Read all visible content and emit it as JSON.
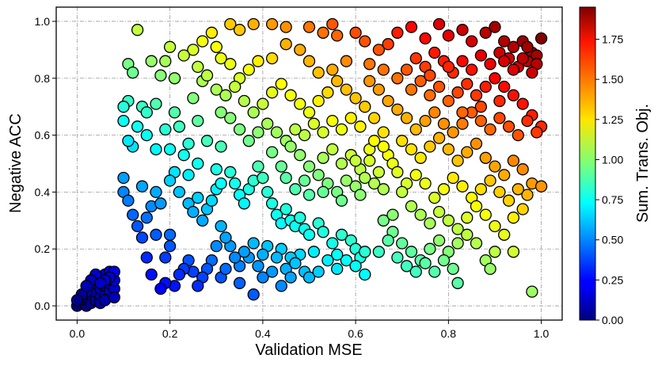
{
  "chart_data": {
    "type": "scatter",
    "xlabel": "Validation MSE",
    "ylabel": "Negative ACC",
    "xlim": [
      -0.045,
      1.045
    ],
    "ylim": [
      -0.05,
      1.05
    ],
    "x_ticks": [
      "0.0",
      "0.2",
      "0.4",
      "0.6",
      "0.8",
      "1.0"
    ],
    "y_ticks": [
      "0.0",
      "0.2",
      "0.4",
      "0.6",
      "0.8",
      "1.0"
    ],
    "grid": true,
    "colorbar": {
      "label": "Sum. Trans. Obj.",
      "range": [
        0,
        1.95
      ],
      "ticks": [
        "0.00",
        "0.25",
        "0.50",
        "0.75",
        "1.00",
        "1.25",
        "1.50",
        "1.75"
      ],
      "colormap": "jet"
    },
    "color_value": "x + y",
    "points": [
      [
        0.0,
        0.0
      ],
      [
        0.01,
        0.01
      ],
      [
        0.01,
        0.02
      ],
      [
        0.02,
        0.0
      ],
      [
        0.02,
        0.02
      ],
      [
        0.02,
        0.03
      ],
      [
        0.03,
        0.01
      ],
      [
        0.03,
        0.04
      ],
      [
        0.03,
        0.06
      ],
      [
        0.04,
        0.02
      ],
      [
        0.04,
        0.05
      ],
      [
        0.04,
        0.08
      ],
      [
        0.05,
        0.03
      ],
      [
        0.05,
        0.06
      ],
      [
        0.05,
        0.1
      ],
      [
        0.06,
        0.04
      ],
      [
        0.06,
        0.07
      ],
      [
        0.06,
        0.11
      ],
      [
        0.07,
        0.05
      ],
      [
        0.07,
        0.08
      ],
      [
        0.07,
        0.12
      ],
      [
        0.08,
        0.06
      ],
      [
        0.08,
        0.09
      ],
      [
        0.08,
        0.12
      ],
      [
        0.02,
        0.05
      ],
      [
        0.01,
        0.04
      ],
      [
        0.05,
        0.01
      ],
      [
        0.06,
        0.02
      ],
      [
        0.07,
        0.1
      ],
      [
        0.04,
        0.11
      ],
      [
        0.03,
        0.09
      ],
      [
        0.08,
        0.03
      ],
      [
        0.0,
        0.02
      ],
      [
        0.06,
        0.09
      ],
      [
        0.02,
        0.07
      ],
      [
        0.05,
        0.08
      ],
      [
        0.13,
        0.97
      ],
      [
        0.11,
        0.85
      ],
      [
        0.12,
        0.82
      ],
      [
        0.16,
        0.86
      ],
      [
        0.19,
        0.86
      ],
      [
        0.2,
        0.91
      ],
      [
        0.18,
        0.81
      ],
      [
        0.21,
        0.8
      ],
      [
        0.14,
        0.7
      ],
      [
        0.17,
        0.71
      ],
      [
        0.15,
        0.68
      ],
      [
        0.11,
        0.72
      ],
      [
        0.1,
        0.7
      ],
      [
        0.1,
        0.65
      ],
      [
        0.13,
        0.63
      ],
      [
        0.15,
        0.6
      ],
      [
        0.12,
        0.56
      ],
      [
        0.11,
        0.58
      ],
      [
        0.17,
        0.55
      ],
      [
        0.19,
        0.62
      ],
      [
        0.21,
        0.68
      ],
      [
        0.22,
        0.63
      ],
      [
        0.2,
        0.55
      ],
      [
        0.23,
        0.53
      ],
      [
        0.24,
        0.57
      ],
      [
        0.25,
        0.73
      ],
      [
        0.27,
        0.79
      ],
      [
        0.26,
        0.65
      ],
      [
        0.28,
        0.58
      ],
      [
        0.31,
        0.56
      ],
      [
        0.3,
        0.48
      ],
      [
        0.26,
        0.5
      ],
      [
        0.24,
        0.46
      ],
      [
        0.21,
        0.47
      ],
      [
        0.2,
        0.44
      ],
      [
        0.17,
        0.4
      ],
      [
        0.14,
        0.42
      ],
      [
        0.1,
        0.45
      ],
      [
        0.1,
        0.4
      ],
      [
        0.11,
        0.37
      ],
      [
        0.12,
        0.32
      ],
      [
        0.13,
        0.28
      ],
      [
        0.14,
        0.24
      ],
      [
        0.15,
        0.31
      ],
      [
        0.16,
        0.35
      ],
      [
        0.18,
        0.36
      ],
      [
        0.17,
        0.25
      ],
      [
        0.2,
        0.25
      ],
      [
        0.22,
        0.4
      ],
      [
        0.24,
        0.36
      ],
      [
        0.25,
        0.33
      ],
      [
        0.26,
        0.38
      ],
      [
        0.27,
        0.3
      ],
      [
        0.28,
        0.34
      ],
      [
        0.29,
        0.37
      ],
      [
        0.3,
        0.41
      ],
      [
        0.31,
        0.43
      ],
      [
        0.33,
        0.47
      ],
      [
        0.34,
        0.43
      ],
      [
        0.35,
        0.39
      ],
      [
        0.36,
        0.36
      ],
      [
        0.37,
        0.41
      ],
      [
        0.38,
        0.44
      ],
      [
        0.39,
        0.49
      ],
      [
        0.4,
        0.45
      ],
      [
        0.41,
        0.4
      ],
      [
        0.42,
        0.36
      ],
      [
        0.43,
        0.32
      ],
      [
        0.44,
        0.29
      ],
      [
        0.45,
        0.34
      ],
      [
        0.46,
        0.3
      ],
      [
        0.47,
        0.28
      ],
      [
        0.48,
        0.31
      ],
      [
        0.49,
        0.27
      ],
      [
        0.5,
        0.25
      ],
      [
        0.52,
        0.29
      ],
      [
        0.53,
        0.26
      ],
      [
        0.55,
        0.22
      ],
      [
        0.57,
        0.25
      ],
      [
        0.59,
        0.23
      ],
      [
        0.6,
        0.2
      ],
      [
        0.61,
        0.17
      ],
      [
        0.62,
        0.19
      ],
      [
        0.58,
        0.16
      ],
      [
        0.56,
        0.18
      ],
      [
        0.54,
        0.16
      ],
      [
        0.51,
        0.19
      ],
      [
        0.48,
        0.18
      ],
      [
        0.46,
        0.17
      ],
      [
        0.44,
        0.2
      ],
      [
        0.43,
        0.17
      ],
      [
        0.41,
        0.21
      ],
      [
        0.4,
        0.18
      ],
      [
        0.38,
        0.22
      ],
      [
        0.37,
        0.17
      ],
      [
        0.36,
        0.19
      ],
      [
        0.35,
        0.14
      ],
      [
        0.34,
        0.17
      ],
      [
        0.33,
        0.21
      ],
      [
        0.32,
        0.24
      ],
      [
        0.31,
        0.28
      ],
      [
        0.3,
        0.21
      ],
      [
        0.29,
        0.16
      ],
      [
        0.28,
        0.13
      ],
      [
        0.27,
        0.1
      ],
      [
        0.26,
        0.07
      ],
      [
        0.25,
        0.12
      ],
      [
        0.24,
        0.16
      ],
      [
        0.23,
        0.13
      ],
      [
        0.22,
        0.11
      ],
      [
        0.21,
        0.07
      ],
      [
        0.19,
        0.08
      ],
      [
        0.18,
        0.06
      ],
      [
        0.16,
        0.11
      ],
      [
        0.15,
        0.17
      ],
      [
        0.19,
        0.17
      ],
      [
        0.2,
        0.21
      ],
      [
        0.39,
        0.14
      ],
      [
        0.42,
        0.12
      ],
      [
        0.45,
        0.13
      ],
      [
        0.47,
        0.15
      ],
      [
        0.49,
        0.12
      ],
      [
        0.5,
        0.1
      ],
      [
        0.4,
        0.1
      ],
      [
        0.38,
        0.04
      ],
      [
        0.35,
        0.08
      ],
      [
        0.31,
        0.1
      ],
      [
        0.32,
        0.13
      ],
      [
        0.44,
        0.07
      ],
      [
        0.46,
        0.1
      ],
      [
        0.52,
        0.12
      ],
      [
        0.56,
        0.13
      ],
      [
        0.6,
        0.14
      ],
      [
        0.62,
        0.11
      ],
      [
        0.33,
        0.99
      ],
      [
        0.35,
        0.97
      ],
      [
        0.38,
        0.99
      ],
      [
        0.42,
        0.99
      ],
      [
        0.45,
        0.98
      ],
      [
        0.5,
        0.98
      ],
      [
        0.53,
        0.96
      ],
      [
        0.55,
        0.99
      ],
      [
        0.56,
        0.95
      ],
      [
        0.6,
        0.96
      ],
      [
        0.62,
        0.93
      ],
      [
        0.65,
        0.9
      ],
      [
        0.63,
        0.85
      ],
      [
        0.58,
        0.86
      ],
      [
        0.55,
        0.83
      ],
      [
        0.52,
        0.82
      ],
      [
        0.5,
        0.86
      ],
      [
        0.48,
        0.9
      ],
      [
        0.45,
        0.92
      ],
      [
        0.42,
        0.87
      ],
      [
        0.39,
        0.86
      ],
      [
        0.37,
        0.83
      ],
      [
        0.35,
        0.8
      ],
      [
        0.33,
        0.85
      ],
      [
        0.31,
        0.87
      ],
      [
        0.3,
        0.91
      ],
      [
        0.29,
        0.96
      ],
      [
        0.27,
        0.93
      ],
      [
        0.25,
        0.9
      ],
      [
        0.23,
        0.88
      ],
      [
        0.26,
        0.84
      ],
      [
        0.28,
        0.81
      ],
      [
        0.3,
        0.76
      ],
      [
        0.32,
        0.74
      ],
      [
        0.34,
        0.77
      ],
      [
        0.36,
        0.72
      ],
      [
        0.38,
        0.68
      ],
      [
        0.4,
        0.71
      ],
      [
        0.42,
        0.75
      ],
      [
        0.44,
        0.78
      ],
      [
        0.46,
        0.74
      ],
      [
        0.48,
        0.71
      ],
      [
        0.5,
        0.68
      ],
      [
        0.52,
        0.72
      ],
      [
        0.54,
        0.75
      ],
      [
        0.56,
        0.79
      ],
      [
        0.58,
        0.76
      ],
      [
        0.6,
        0.73
      ],
      [
        0.62,
        0.7
      ],
      [
        0.64,
        0.66
      ],
      [
        0.61,
        0.63
      ],
      [
        0.59,
        0.66
      ],
      [
        0.57,
        0.62
      ],
      [
        0.55,
        0.65
      ],
      [
        0.53,
        0.61
      ],
      [
        0.51,
        0.64
      ],
      [
        0.49,
        0.6
      ],
      [
        0.47,
        0.62
      ],
      [
        0.45,
        0.58
      ],
      [
        0.43,
        0.61
      ],
      [
        0.41,
        0.64
      ],
      [
        0.39,
        0.61
      ],
      [
        0.37,
        0.58
      ],
      [
        0.35,
        0.62
      ],
      [
        0.33,
        0.66
      ],
      [
        0.31,
        0.68
      ],
      [
        0.53,
        0.52
      ],
      [
        0.55,
        0.55
      ],
      [
        0.57,
        0.5
      ],
      [
        0.59,
        0.53
      ],
      [
        0.61,
        0.48
      ],
      [
        0.63,
        0.51
      ],
      [
        0.65,
        0.47
      ],
      [
        0.67,
        0.53
      ],
      [
        0.66,
        0.56
      ],
      [
        0.64,
        0.43
      ],
      [
        0.62,
        0.45
      ],
      [
        0.6,
        0.42
      ],
      [
        0.58,
        0.44
      ],
      [
        0.56,
        0.4
      ],
      [
        0.54,
        0.43
      ],
      [
        0.52,
        0.46
      ],
      [
        0.5,
        0.49
      ],
      [
        0.48,
        0.53
      ],
      [
        0.46,
        0.56
      ],
      [
        0.44,
        0.49
      ],
      [
        0.42,
        0.54
      ],
      [
        0.45,
        0.45
      ],
      [
        0.49,
        0.44
      ],
      [
        0.53,
        0.4
      ],
      [
        0.57,
        0.37
      ],
      [
        0.61,
        0.39
      ],
      [
        0.66,
        0.41
      ],
      [
        0.68,
        0.5
      ],
      [
        0.5,
        0.39
      ],
      [
        0.47,
        0.41
      ],
      [
        0.63,
        0.55
      ],
      [
        0.6,
        0.51
      ],
      [
        0.67,
        0.92
      ],
      [
        0.69,
        0.96
      ],
      [
        0.72,
        0.98
      ],
      [
        0.75,
        0.94
      ],
      [
        0.78,
        0.99
      ],
      [
        0.8,
        0.95
      ],
      [
        0.83,
        0.97
      ],
      [
        0.85,
        0.93
      ],
      [
        0.88,
        0.96
      ],
      [
        0.9,
        0.98
      ],
      [
        0.92,
        0.93
      ],
      [
        0.94,
        0.91
      ],
      [
        0.96,
        0.93
      ],
      [
        0.98,
        0.89
      ],
      [
        1.0,
        0.94
      ],
      [
        0.99,
        0.88
      ],
      [
        0.97,
        0.86
      ],
      [
        0.95,
        0.84
      ],
      [
        0.93,
        0.87
      ],
      [
        0.91,
        0.89
      ],
      [
        0.89,
        0.85
      ],
      [
        0.87,
        0.88
      ],
      [
        0.85,
        0.83
      ],
      [
        0.83,
        0.86
      ],
      [
        0.81,
        0.82
      ],
      [
        0.79,
        0.86
      ],
      [
        0.77,
        0.89
      ],
      [
        0.75,
        0.84
      ],
      [
        0.73,
        0.87
      ],
      [
        0.71,
        0.83
      ],
      [
        0.69,
        0.8
      ],
      [
        0.72,
        0.76
      ],
      [
        0.74,
        0.79
      ],
      [
        0.76,
        0.74
      ],
      [
        0.78,
        0.77
      ],
      [
        0.8,
        0.72
      ],
      [
        0.82,
        0.75
      ],
      [
        0.84,
        0.78
      ],
      [
        0.86,
        0.74
      ],
      [
        0.88,
        0.77
      ],
      [
        0.9,
        0.8
      ],
      [
        0.92,
        0.77
      ],
      [
        0.94,
        0.74
      ],
      [
        0.96,
        0.71
      ],
      [
        0.98,
        0.67
      ],
      [
        1.0,
        0.63
      ],
      [
        0.99,
        0.61
      ],
      [
        0.97,
        0.65
      ],
      [
        0.95,
        0.6
      ],
      [
        0.93,
        0.63
      ],
      [
        0.91,
        0.66
      ],
      [
        0.89,
        0.62
      ],
      [
        0.87,
        0.65
      ],
      [
        0.85,
        0.68
      ],
      [
        0.83,
        0.64
      ],
      [
        0.81,
        0.61
      ],
      [
        0.79,
        0.64
      ],
      [
        0.77,
        0.68
      ],
      [
        0.75,
        0.65
      ],
      [
        0.73,
        0.62
      ],
      [
        0.71,
        0.66
      ],
      [
        0.69,
        0.69
      ],
      [
        0.7,
        0.58
      ],
      [
        0.72,
        0.55
      ],
      [
        0.74,
        0.52
      ],
      [
        0.76,
        0.56
      ],
      [
        0.78,
        0.59
      ],
      [
        0.8,
        0.55
      ],
      [
        0.82,
        0.51
      ],
      [
        0.84,
        0.54
      ],
      [
        0.86,
        0.57
      ],
      [
        0.88,
        0.52
      ],
      [
        0.9,
        0.49
      ],
      [
        0.92,
        0.46
      ],
      [
        0.94,
        0.51
      ],
      [
        0.96,
        0.48
      ],
      [
        0.98,
        0.43
      ],
      [
        1.0,
        0.42
      ],
      [
        0.97,
        0.39
      ],
      [
        0.95,
        0.41
      ],
      [
        0.93,
        0.37
      ],
      [
        0.91,
        0.4
      ],
      [
        0.89,
        0.44
      ],
      [
        0.87,
        0.41
      ],
      [
        0.85,
        0.38
      ],
      [
        0.83,
        0.42
      ],
      [
        0.81,
        0.45
      ],
      [
        0.79,
        0.41
      ],
      [
        0.77,
        0.38
      ],
      [
        0.75,
        0.43
      ],
      [
        0.73,
        0.46
      ],
      [
        0.71,
        0.43
      ],
      [
        0.69,
        0.47
      ],
      [
        0.7,
        0.4
      ],
      [
        0.72,
        0.35
      ],
      [
        0.74,
        0.32
      ],
      [
        0.76,
        0.29
      ],
      [
        0.78,
        0.33
      ],
      [
        0.8,
        0.3
      ],
      [
        0.82,
        0.27
      ],
      [
        0.84,
        0.31
      ],
      [
        0.86,
        0.35
      ],
      [
        0.88,
        0.32
      ],
      [
        0.9,
        0.28
      ],
      [
        0.92,
        0.25
      ],
      [
        0.94,
        0.31
      ],
      [
        0.96,
        0.34
      ],
      [
        0.98,
        0.05
      ],
      [
        0.88,
        0.16
      ],
      [
        0.9,
        0.19
      ],
      [
        0.94,
        0.19
      ],
      [
        0.89,
        0.13
      ],
      [
        0.82,
        0.08
      ],
      [
        0.66,
        0.3
      ],
      [
        0.68,
        0.26
      ],
      [
        0.7,
        0.22
      ],
      [
        0.72,
        0.19
      ],
      [
        0.74,
        0.16
      ],
      [
        0.76,
        0.2
      ],
      [
        0.78,
        0.23
      ],
      [
        0.8,
        0.19
      ],
      [
        0.82,
        0.22
      ],
      [
        0.84,
        0.25
      ],
      [
        0.86,
        0.22
      ],
      [
        0.71,
        0.14
      ],
      [
        0.73,
        0.12
      ],
      [
        0.75,
        0.15
      ],
      [
        0.77,
        0.12
      ],
      [
        0.79,
        0.16
      ],
      [
        0.81,
        0.13
      ],
      [
        0.69,
        0.17
      ],
      [
        0.67,
        0.23
      ],
      [
        0.65,
        0.19
      ],
      [
        0.68,
        0.32
      ],
      [
        0.97,
        0.91
      ],
      [
        0.99,
        0.85
      ],
      [
        0.96,
        0.87
      ],
      [
        0.94,
        0.83
      ],
      [
        0.92,
        0.86
      ],
      [
        0.98,
        0.82
      ],
      [
        0.91,
        0.72
      ],
      [
        0.87,
        0.7
      ],
      [
        0.83,
        0.68
      ],
      [
        0.76,
        0.81
      ],
      [
        0.8,
        0.84
      ],
      [
        0.66,
        0.61
      ],
      [
        0.64,
        0.58
      ],
      [
        0.67,
        0.72
      ],
      [
        0.65,
        0.76
      ],
      [
        0.63,
        0.79
      ],
      [
        0.66,
        0.83
      ]
    ]
  }
}
